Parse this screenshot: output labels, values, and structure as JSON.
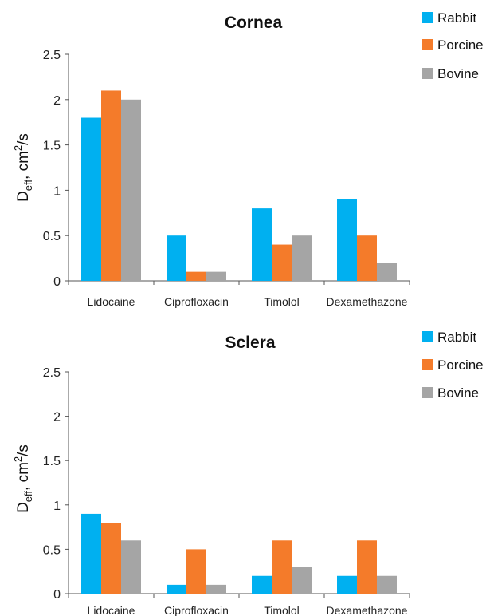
{
  "chart_data": [
    {
      "type": "bar",
      "title": "Cornea",
      "ylabel_main": "D",
      "ylabel_sub": "eff",
      "ylabel_rest": ", cm",
      "ylabel_sup": "2",
      "ylabel_end": "/s",
      "ylim": [
        0,
        2.5
      ],
      "yticks": [
        "0",
        "0.5",
        "1",
        "1.5",
        "2",
        "2.5"
      ],
      "categories": [
        "Lidocaine",
        "Ciprofloxacin",
        "Timolol",
        "Dexamethazone"
      ],
      "series": [
        {
          "name": "Rabbit",
          "color": "#00b0f0",
          "values": [
            1.8,
            0.5,
            0.8,
            0.9
          ]
        },
        {
          "name": "Porcine",
          "color": "#f47b2a",
          "values": [
            2.1,
            0.1,
            0.4,
            0.5
          ]
        },
        {
          "name": "Bovine",
          "color": "#a5a5a5",
          "values": [
            2.0,
            0.1,
            0.5,
            0.2
          ]
        }
      ],
      "legend": "right",
      "grid": false
    },
    {
      "type": "bar",
      "title": "Sclera",
      "ylabel_main": "D",
      "ylabel_sub": "eff",
      "ylabel_rest": ", cm",
      "ylabel_sup": "2",
      "ylabel_end": "/s",
      "ylim": [
        0,
        2.5
      ],
      "yticks": [
        "0",
        "0.5",
        "1",
        "1.5",
        "2",
        "2.5"
      ],
      "categories": [
        "Lidocaine",
        "Ciprofloxacin",
        "Timolol",
        "Dexamethazone"
      ],
      "series": [
        {
          "name": "Rabbit",
          "color": "#00b0f0",
          "values": [
            0.9,
            0.1,
            0.2,
            0.2
          ]
        },
        {
          "name": "Porcine",
          "color": "#f47b2a",
          "values": [
            0.8,
            0.5,
            0.6,
            0.6
          ]
        },
        {
          "name": "Bovine",
          "color": "#a5a5a5",
          "values": [
            0.6,
            0.1,
            0.3,
            0.2
          ]
        }
      ],
      "legend": "right",
      "grid": false
    }
  ]
}
